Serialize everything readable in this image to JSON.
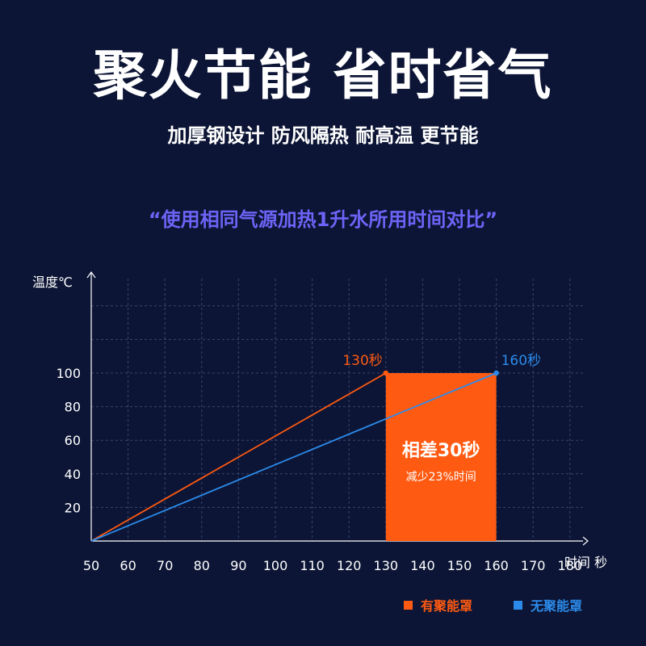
{
  "header": {
    "title": "聚火节能 省时省气",
    "subtitle": "加厚钢设计 防风隔热 耐高温 更节能",
    "quote": "“使用相同气源加热1升水所用时间对比”"
  },
  "colors": {
    "background": "#0c1535",
    "accent_orange": "#ff5a12",
    "accent_blue": "#2c8bea",
    "quote_purple": "#6e63f6",
    "grid": "#3a4470"
  },
  "chart_data": {
    "type": "line",
    "ylabel": "温度℃",
    "xlabel": "时间 秒",
    "x_ticks": [
      50,
      60,
      70,
      80,
      90,
      100,
      110,
      120,
      130,
      140,
      150,
      160,
      170,
      180
    ],
    "y_ticks": [
      20,
      40,
      60,
      80,
      100
    ],
    "grid": true,
    "series": [
      {
        "name": "有聚能罩",
        "color": "#ff5a12",
        "points": [
          [
            50,
            0
          ],
          [
            130,
            100
          ]
        ],
        "end_label": "130秒"
      },
      {
        "name": "无聚能罩",
        "color": "#2c8bea",
        "points": [
          [
            50,
            0
          ],
          [
            160,
            100
          ]
        ],
        "end_label": "160秒"
      }
    ],
    "highlight": {
      "x_range": [
        130,
        160
      ],
      "y_range": [
        0,
        100
      ],
      "title": "相差30秒",
      "subtitle": "减少23%时间"
    }
  }
}
